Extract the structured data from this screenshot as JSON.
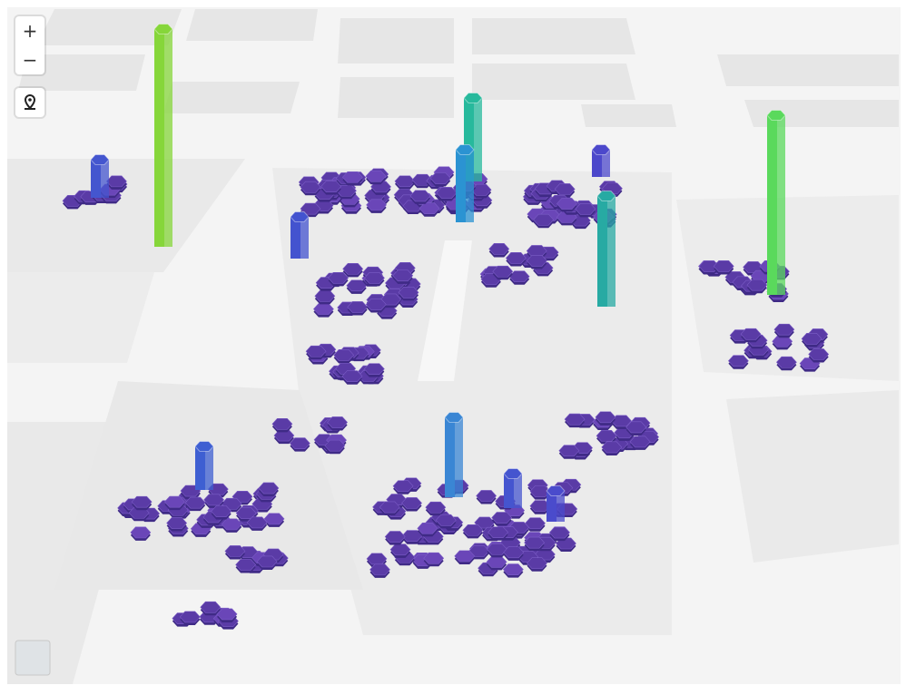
{
  "controls": {
    "zoom_in": "+",
    "zoom_out": "−"
  },
  "columns": {
    "counts": [
      240,
      92,
      122,
      198,
      88,
      80,
      48,
      46,
      42,
      38,
      34,
      30
    ],
    "colors": [
      "#86d63a",
      "#27b99c",
      "#27aaa3",
      "#5ad95c",
      "#3a86d4",
      "#2b93d2",
      "#3e5fd2",
      "#4353cf",
      "#4456cf",
      "#4555cf",
      "#4a4bcc",
      "#4c48cb"
    ]
  }
}
